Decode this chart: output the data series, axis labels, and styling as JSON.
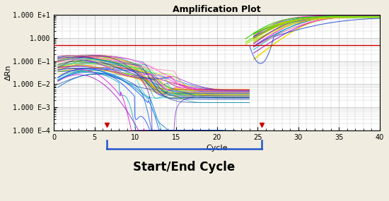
{
  "title": "Amplification Plot",
  "xlabel": "Cycle",
  "ylabel": "ΔRn",
  "x_min": 0,
  "x_max": 40,
  "y_min": 0.0001,
  "y_max": 10.0,
  "threshold_y": 0.5,
  "marker1_x": 6.5,
  "marker2_x": 25.5,
  "bracket_start": 6.5,
  "bracket_end": 25.5,
  "bracket_label": "Start/End Cycle",
  "yticks": [
    0.0001,
    0.001,
    0.01,
    0.1,
    1.0,
    10.0
  ],
  "ytick_labels": [
    "1.000 E4",
    "1.000 E3",
    "1.000 E2",
    "1.000 E1",
    "1.000",
    "1.000 E+1"
  ],
  "xticks": [
    0,
    5,
    10,
    15,
    20,
    25,
    30,
    35,
    40
  ],
  "plot_bg": "#ffffff",
  "fig_bg": "#f0ede0",
  "grid_color": "#c8c8c8",
  "threshold_color": "#cc0000",
  "bracket_color": "#2255cc",
  "line_colors_left": [
    "#33cc00",
    "#66dd00",
    "#99ee00",
    "#aadd00",
    "#ccee00",
    "#ffcc00",
    "#ffaa00",
    "#ff8800",
    "#ff6600",
    "#ff00cc",
    "#cc00ff",
    "#9900cc",
    "#6600cc",
    "#0066ff",
    "#0044cc",
    "#0022aa",
    "#003399",
    "#00cccc",
    "#00aaaa",
    "#009999",
    "#ff6699",
    "#ff99cc",
    "#ffbbdd",
    "#cc6600",
    "#996600"
  ],
  "line_colors_right": [
    "#33cc00",
    "#66dd00",
    "#aadd00",
    "#ccee00",
    "#ffcc00",
    "#ffaa00",
    "#ff00cc",
    "#cc00ff",
    "#9900cc",
    "#0066ff",
    "#0044cc",
    "#003399",
    "#00cccc",
    "#009999",
    "#ff6699"
  ],
  "num_main_lines": 48,
  "num_amp_lines": 14,
  "num_outlier_lines": 5
}
